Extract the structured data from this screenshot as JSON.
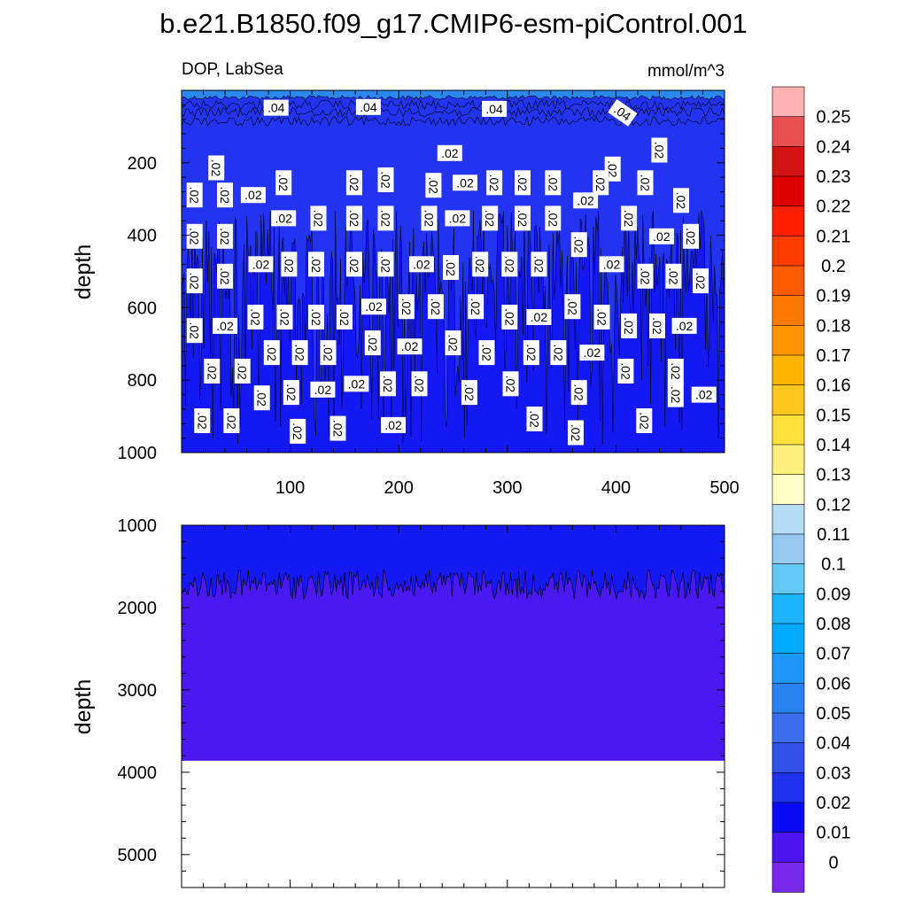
{
  "title": "b.e21.B1850.f09_g17.CMIP6-esm-piControl.001",
  "colors": {
    "shallow_band": "#2a88f0",
    "upper_fill": "#2233f2",
    "mid_fill": "#1418f2",
    "deep_fill": "#4a18f0"
  },
  "chart_data": [
    {
      "type": "heatmap",
      "panel": "upper",
      "left_label": "DOP, LabSea",
      "right_label": "mmol/m^3",
      "xlabel": "",
      "ylabel": "depth",
      "xlim": [
        0,
        500
      ],
      "ylim": [
        1000,
        0
      ],
      "x_ticks": [
        100,
        200,
        300,
        400,
        500
      ],
      "y_ticks": [
        200,
        400,
        600,
        800,
        1000
      ],
      "contour_labels": [
        {
          "text": ".04",
          "x": 87,
          "y": 48
        },
        {
          "text": ".04",
          "x": 172,
          "y": 46
        },
        {
          "text": ".04",
          "x": 288,
          "y": 51
        },
        {
          "text": ".04",
          "x": 406,
          "y": 62
        },
        {
          "text": ".02",
          "x": 32,
          "y": 214
        },
        {
          "text": ".02",
          "x": 247,
          "y": 173
        },
        {
          "text": ".02",
          "x": 440,
          "y": 165
        },
        {
          "text": ".02",
          "x": 397,
          "y": 217
        },
        {
          "text": ".02",
          "x": 12,
          "y": 289
        },
        {
          "text": ".02",
          "x": 40,
          "y": 289
        },
        {
          "text": ".02",
          "x": 66,
          "y": 289
        },
        {
          "text": ".02",
          "x": 94,
          "y": 255
        },
        {
          "text": ".02",
          "x": 159,
          "y": 255
        },
        {
          "text": ".02",
          "x": 188,
          "y": 247
        },
        {
          "text": ".02",
          "x": 232,
          "y": 262
        },
        {
          "text": ".02",
          "x": 261,
          "y": 255
        },
        {
          "text": ".02",
          "x": 288,
          "y": 255
        },
        {
          "text": ".02",
          "x": 314,
          "y": 255
        },
        {
          "text": ".02",
          "x": 342,
          "y": 255
        },
        {
          "text": ".02",
          "x": 386,
          "y": 255
        },
        {
          "text": ".02",
          "x": 372,
          "y": 304
        },
        {
          "text": ".02",
          "x": 427,
          "y": 255
        },
        {
          "text": ".02",
          "x": 460,
          "y": 304
        },
        {
          "text": ".02",
          "x": 12,
          "y": 403
        },
        {
          "text": ".02",
          "x": 40,
          "y": 403
        },
        {
          "text": ".02",
          "x": 94,
          "y": 353
        },
        {
          "text": ".02",
          "x": 126,
          "y": 353
        },
        {
          "text": ".02",
          "x": 159,
          "y": 353
        },
        {
          "text": ".02",
          "x": 188,
          "y": 353
        },
        {
          "text": ".02",
          "x": 228,
          "y": 353
        },
        {
          "text": ".02",
          "x": 254,
          "y": 353
        },
        {
          "text": ".02",
          "x": 284,
          "y": 353
        },
        {
          "text": ".02",
          "x": 314,
          "y": 353
        },
        {
          "text": ".02",
          "x": 342,
          "y": 353
        },
        {
          "text": ".02",
          "x": 412,
          "y": 353
        },
        {
          "text": ".02",
          "x": 442,
          "y": 403
        },
        {
          "text": ".02",
          "x": 469,
          "y": 403
        },
        {
          "text": ".02",
          "x": 366,
          "y": 426
        },
        {
          "text": ".02",
          "x": 12,
          "y": 526
        },
        {
          "text": ".02",
          "x": 40,
          "y": 513
        },
        {
          "text": ".02",
          "x": 73,
          "y": 480
        },
        {
          "text": ".02",
          "x": 99,
          "y": 480
        },
        {
          "text": ".02",
          "x": 124,
          "y": 480
        },
        {
          "text": ".02",
          "x": 159,
          "y": 480
        },
        {
          "text": ".02",
          "x": 188,
          "y": 480
        },
        {
          "text": ".02",
          "x": 221,
          "y": 480
        },
        {
          "text": ".02",
          "x": 248,
          "y": 489
        },
        {
          "text": ".02",
          "x": 275,
          "y": 480
        },
        {
          "text": ".02",
          "x": 302,
          "y": 480
        },
        {
          "text": ".02",
          "x": 329,
          "y": 480
        },
        {
          "text": ".02",
          "x": 396,
          "y": 480
        },
        {
          "text": ".02",
          "x": 427,
          "y": 513
        },
        {
          "text": ".02",
          "x": 453,
          "y": 513
        },
        {
          "text": ".02",
          "x": 478,
          "y": 526
        },
        {
          "text": ".02",
          "x": 12,
          "y": 663
        },
        {
          "text": ".02",
          "x": 40,
          "y": 650
        },
        {
          "text": ".02",
          "x": 68,
          "y": 626
        },
        {
          "text": ".02",
          "x": 95,
          "y": 626
        },
        {
          "text": ".02",
          "x": 124,
          "y": 626
        },
        {
          "text": ".02",
          "x": 150,
          "y": 626
        },
        {
          "text": ".02",
          "x": 177,
          "y": 597
        },
        {
          "text": ".02",
          "x": 207,
          "y": 597
        },
        {
          "text": ".02",
          "x": 234,
          "y": 597
        },
        {
          "text": ".02",
          "x": 271,
          "y": 597
        },
        {
          "text": ".02",
          "x": 302,
          "y": 626
        },
        {
          "text": ".02",
          "x": 329,
          "y": 626
        },
        {
          "text": ".02",
          "x": 360,
          "y": 597
        },
        {
          "text": ".02",
          "x": 387,
          "y": 626
        },
        {
          "text": ".02",
          "x": 412,
          "y": 650
        },
        {
          "text": ".02",
          "x": 438,
          "y": 650
        },
        {
          "text": ".02",
          "x": 463,
          "y": 650
        },
        {
          "text": ".02",
          "x": 83,
          "y": 724
        },
        {
          "text": ".02",
          "x": 109,
          "y": 724
        },
        {
          "text": ".02",
          "x": 135,
          "y": 724
        },
        {
          "text": ".02",
          "x": 176,
          "y": 697
        },
        {
          "text": ".02",
          "x": 210,
          "y": 707
        },
        {
          "text": ".02",
          "x": 250,
          "y": 697
        },
        {
          "text": ".02",
          "x": 281,
          "y": 724
        },
        {
          "text": ".02",
          "x": 322,
          "y": 724
        },
        {
          "text": ".02",
          "x": 347,
          "y": 724
        },
        {
          "text": ".02",
          "x": 378,
          "y": 724
        },
        {
          "text": ".02",
          "x": 28,
          "y": 775
        },
        {
          "text": ".02",
          "x": 56,
          "y": 775
        },
        {
          "text": ".02",
          "x": 409,
          "y": 775
        },
        {
          "text": ".02",
          "x": 455,
          "y": 775
        },
        {
          "text": ".02",
          "x": 161,
          "y": 810
        },
        {
          "text": ".02",
          "x": 190,
          "y": 810
        },
        {
          "text": ".02",
          "x": 219,
          "y": 810
        },
        {
          "text": ".02",
          "x": 74,
          "y": 849
        },
        {
          "text": ".02",
          "x": 101,
          "y": 834
        },
        {
          "text": ".02",
          "x": 130,
          "y": 826
        },
        {
          "text": ".02",
          "x": 265,
          "y": 834
        },
        {
          "text": ".02",
          "x": 303,
          "y": 810
        },
        {
          "text": ".02",
          "x": 366,
          "y": 834
        },
        {
          "text": ".02",
          "x": 455,
          "y": 840
        },
        {
          "text": ".02",
          "x": 481,
          "y": 840
        },
        {
          "text": ".02",
          "x": 19,
          "y": 912
        },
        {
          "text": ".02",
          "x": 46,
          "y": 912
        },
        {
          "text": ".02",
          "x": 107,
          "y": 941
        },
        {
          "text": ".02",
          "x": 144,
          "y": 933
        },
        {
          "text": ".02",
          "x": 195,
          "y": 924
        },
        {
          "text": ".02",
          "x": 325,
          "y": 907
        },
        {
          "text": ".02",
          "x": 363,
          "y": 945
        },
        {
          "text": ".02",
          "x": 426,
          "y": 912
        }
      ]
    },
    {
      "type": "heatmap",
      "panel": "lower",
      "xlabel": "",
      "ylabel": "depth",
      "xlim": [
        0,
        500
      ],
      "ylim": [
        5400,
        1000
      ],
      "y_ticks": [
        1000,
        2000,
        3000,
        4000,
        5000
      ],
      "ocean_floor_depth": 3860,
      "contour_level_mean_depth": 1720
    },
    {
      "type": "colorbar",
      "levels": [
        "0.25",
        "0.24",
        "0.23",
        "0.22",
        "0.21",
        "0.2",
        "0.19",
        "0.18",
        "0.17",
        "0.16",
        "0.15",
        "0.14",
        "0.13",
        "0.12",
        "0.11",
        "0.1",
        "0.09",
        "0.08",
        "0.07",
        "0.06",
        "0.05",
        "0.04",
        "0.03",
        "0.02",
        "0.01",
        "0"
      ],
      "colors": [
        "#ffb2b2",
        "#e85050",
        "#d21414",
        "#e00000",
        "#ff1e00",
        "#ff3c00",
        "#ff5a00",
        "#ff7800",
        "#ff9600",
        "#ffb400",
        "#ffc81e",
        "#ffe13c",
        "#fff080",
        "#ffffc8",
        "#b4dcf5",
        "#96c8f0",
        "#64c8f5",
        "#1eb4fa",
        "#00aaff",
        "#1e96fa",
        "#2882f0",
        "#3c6eeb",
        "#3250e6",
        "#1e32f0",
        "#0a0af5",
        "#4b14f0",
        "#7828eb"
      ]
    }
  ]
}
